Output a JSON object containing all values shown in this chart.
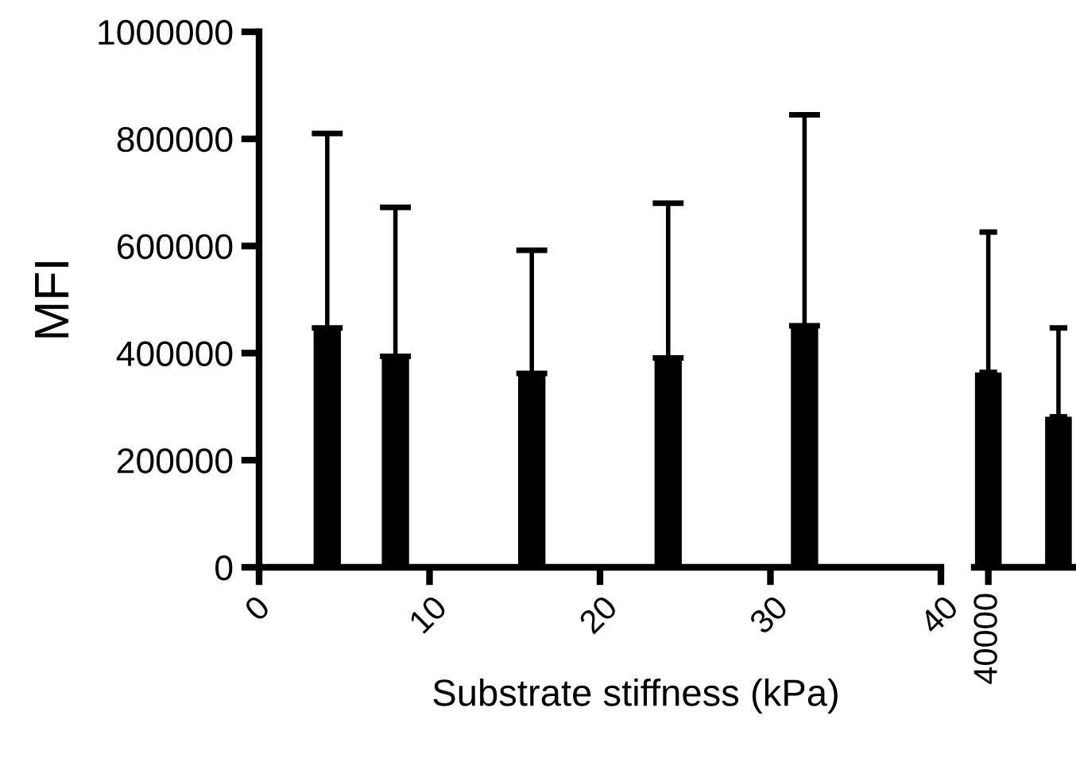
{
  "chart_data": [
    {
      "type": "bar",
      "ylabel": "MFI",
      "xlabel": "Substrate stiffness (kPa)",
      "x": [
        4,
        8,
        16,
        24,
        32
      ],
      "values": [
        447000,
        394000,
        362000,
        391000,
        451000
      ],
      "color": "#000000",
      "errors": [
        [
          447000,
          810000
        ],
        [
          394000,
          672000
        ],
        [
          362000,
          592000
        ],
        [
          391000,
          680000
        ],
        [
          451000,
          845000
        ]
      ],
      "xlim": [
        0,
        40
      ],
      "xticks": [
        0,
        10,
        20,
        30,
        40
      ],
      "ylim": [
        0,
        1000000
      ],
      "yticks": [
        0,
        200000,
        400000,
        600000,
        800000,
        1000000
      ],
      "grid": false,
      "legend": false
    },
    {
      "type": "bar",
      "categories": [
        "40000",
        null
      ],
      "values": [
        364000,
        281000
      ],
      "color": "#000000",
      "errors": [
        [
          364000,
          626000
        ],
        [
          281000,
          447000
        ]
      ],
      "ylim": [
        0,
        1000000
      ],
      "tick_labels": "x",
      "grid": false,
      "legend": false
    }
  ]
}
